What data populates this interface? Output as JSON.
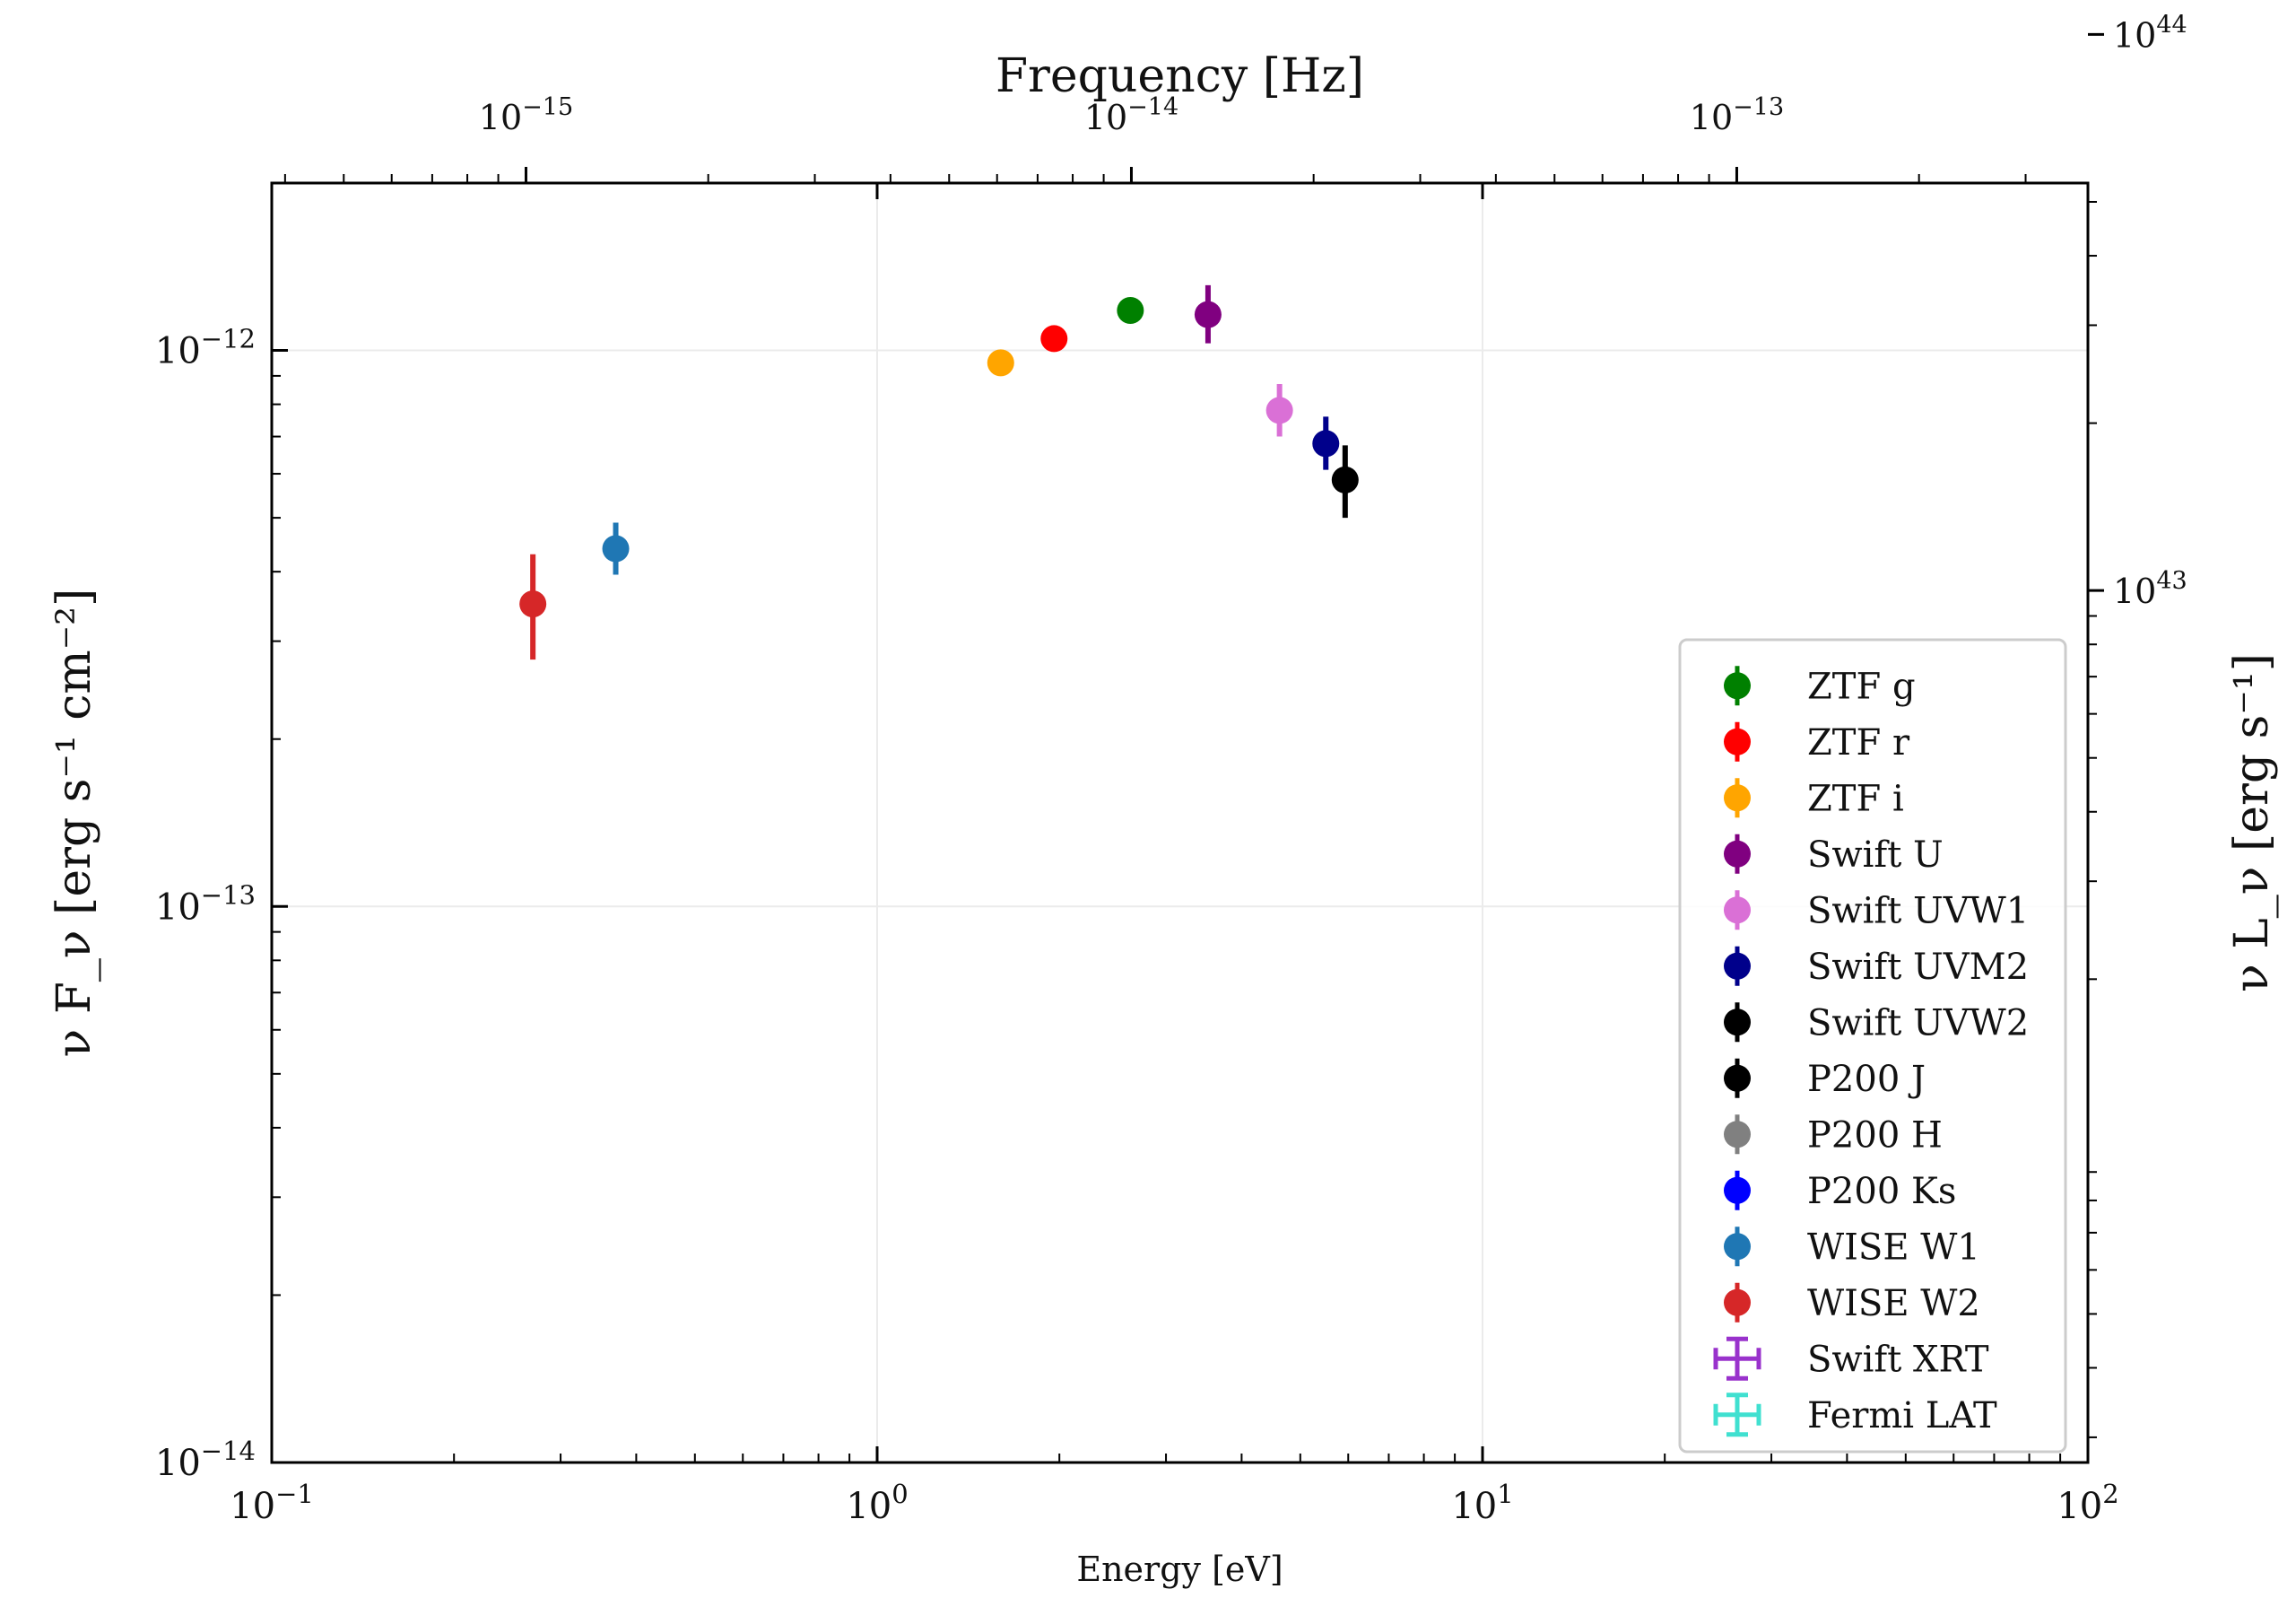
{
  "chart_data": {
    "type": "scatter",
    "x_scale": "log",
    "y_scale": "log",
    "xlim": [
      0.1,
      100
    ],
    "ylim": [
      1e-14,
      2e-12
    ],
    "xlabel": "Energy [eV]",
    "ylabel": "ν F_ν [erg s⁻¹ cm⁻²]",
    "top_xlabel": "Frequency [Hz]",
    "right_ylabel": "ν L_ν [erg s⁻¹]",
    "grid": true,
    "x_ticks": [
      {
        "value": 0.1,
        "base": "10",
        "exp": "−1"
      },
      {
        "value": 1,
        "base": "10",
        "exp": "0"
      },
      {
        "value": 10,
        "base": "10",
        "exp": "1"
      },
      {
        "value": 100,
        "base": "10",
        "exp": "2"
      }
    ],
    "y_ticks": [
      {
        "value": 1e-14,
        "base": "10",
        "exp": "−14"
      },
      {
        "value": 1e-13,
        "base": "10",
        "exp": "−13"
      },
      {
        "value": 1e-12,
        "base": "10",
        "exp": "−12"
      }
    ],
    "top_ticks": [
      {
        "energy_ev": 0.263,
        "base": "10",
        "exp": "−15"
      },
      {
        "energy_ev": 2.63,
        "base": "10",
        "exp": "−14"
      },
      {
        "energy_ev": 26.3,
        "base": "10",
        "exp": "−13"
      }
    ],
    "right_ticks": [
      {
        "nu_f": 3.7e-13,
        "base": "10",
        "exp": "43"
      },
      {
        "nu_f": 3.7e-12,
        "base": "10",
        "exp": "44"
      }
    ],
    "legend_position": "lower-right",
    "series": [
      {
        "name": "ZTF g",
        "color": "#008000",
        "marker": "dot",
        "x": 2.62,
        "y": 1.18e-12,
        "yerr_lo": 2e-14,
        "yerr_hi": 2e-14
      },
      {
        "name": "ZTF r",
        "color": "#ff0000",
        "marker": "dot",
        "x": 1.96,
        "y": 1.05e-12,
        "yerr_lo": 2e-14,
        "yerr_hi": 2e-14
      },
      {
        "name": "ZTF i",
        "color": "#ffa500",
        "marker": "dot",
        "x": 1.6,
        "y": 9.5e-13,
        "yerr_lo": 2e-14,
        "yerr_hi": 2e-14
      },
      {
        "name": "Swift U",
        "color": "#800080",
        "marker": "dot",
        "x": 3.52,
        "y": 1.16e-12,
        "yerr_lo": 1.3e-13,
        "yerr_hi": 1.5e-13
      },
      {
        "name": "Swift UVW1",
        "color": "#da70d6",
        "marker": "dot",
        "x": 4.62,
        "y": 7.8e-13,
        "yerr_lo": 8e-14,
        "yerr_hi": 9e-14
      },
      {
        "name": "Swift UVM2",
        "color": "#00008b",
        "marker": "dot",
        "x": 5.51,
        "y": 6.8e-13,
        "yerr_lo": 7e-14,
        "yerr_hi": 8e-14
      },
      {
        "name": "Swift UVW2",
        "color": "#000000",
        "marker": "dot",
        "x": 5.93,
        "y": 5.85e-13,
        "yerr_lo": 8.5e-14,
        "yerr_hi": 9e-14
      },
      {
        "name": "P200 J",
        "color": "#000000",
        "marker": "dot",
        "x": null,
        "y": null
      },
      {
        "name": "P200 H",
        "color": "#808080",
        "marker": "dot",
        "x": null,
        "y": null
      },
      {
        "name": "P200 Ks",
        "color": "#0000ff",
        "marker": "dot",
        "x": null,
        "y": null
      },
      {
        "name": "WISE W1",
        "color": "#1f77b4",
        "marker": "dot",
        "x": 0.37,
        "y": 4.4e-13,
        "yerr_lo": 4.5e-14,
        "yerr_hi": 5e-14
      },
      {
        "name": "WISE W2",
        "color": "#d62728",
        "marker": "dot",
        "x": 0.27,
        "y": 3.5e-13,
        "yerr_lo": 7.2e-14,
        "yerr_hi": 8e-14
      },
      {
        "name": "Swift XRT",
        "color": "#9932cc",
        "marker": "errorbox",
        "x": null,
        "y": null
      },
      {
        "name": "Fermi LAT",
        "color": "#40e0d0",
        "marker": "errorbox",
        "x": null,
        "y": null
      }
    ]
  }
}
